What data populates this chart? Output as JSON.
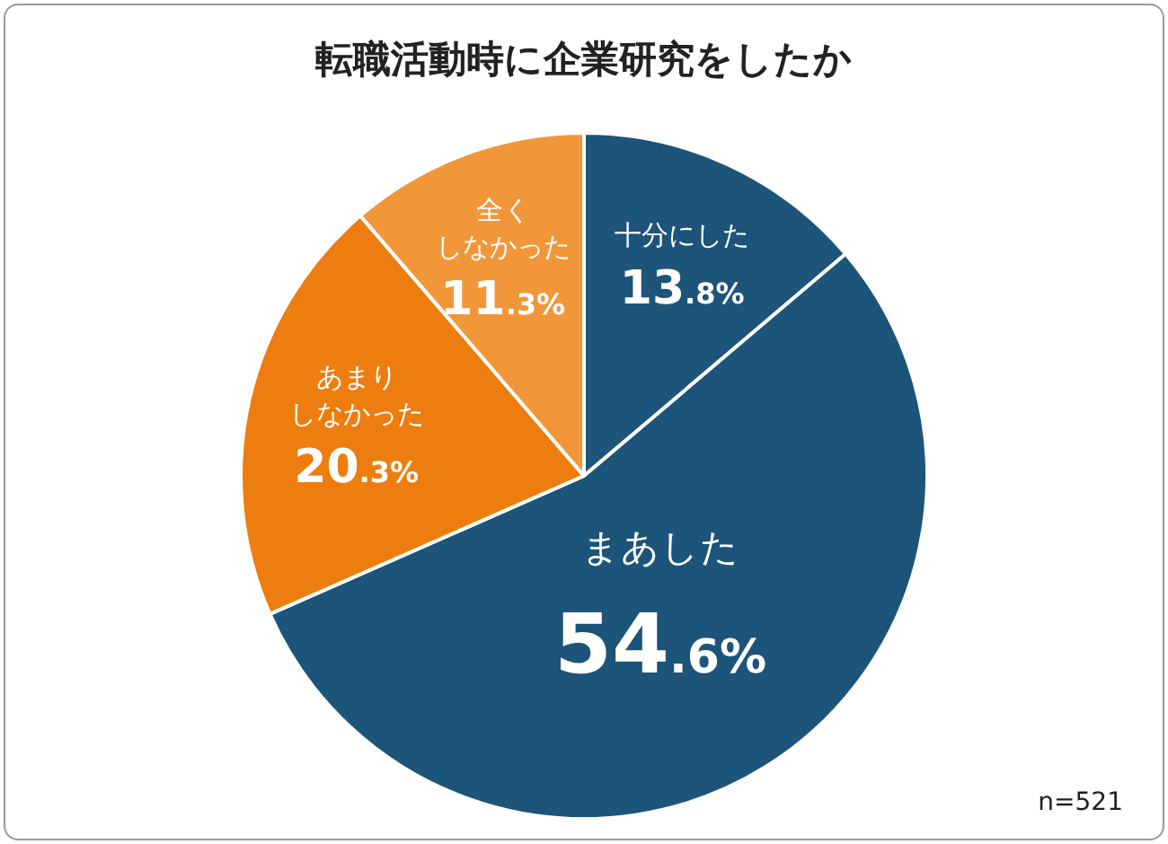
{
  "chart_data": {
    "type": "pie",
    "title": "転職活動時に企業研究をしたか",
    "categories": [
      "十分にした",
      "まあした",
      "あまりしなかった",
      "全くしなかった"
    ],
    "values": [
      13.8,
      54.6,
      20.3,
      11.3
    ],
    "colors": [
      "#1d5479",
      "#1d5479",
      "#ee7d0f",
      "#f1973a"
    ],
    "value_labels": [
      "13.8%",
      "54.6%",
      "20.3%",
      "11.3%"
    ],
    "annotations": [
      "n=521"
    ]
  }
}
